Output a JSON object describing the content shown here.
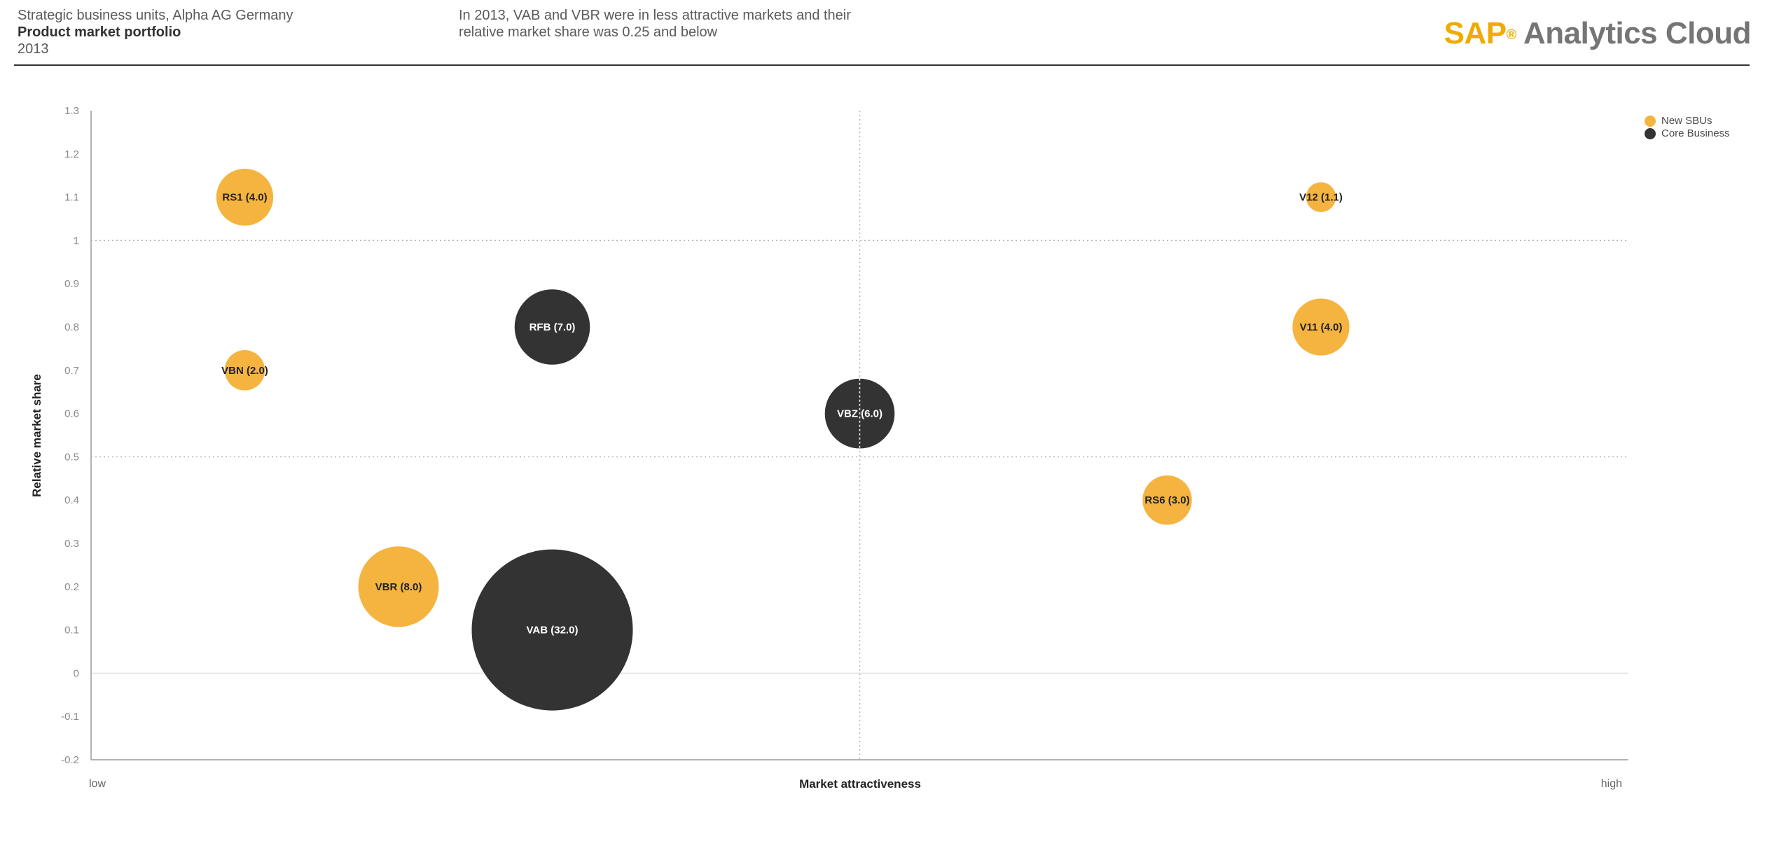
{
  "header": {
    "subtitle": "Strategic business units, Alpha AG Germany",
    "title": "Product market portfolio",
    "year": "2013",
    "comment": "In 2013, VAB and VBR were in less attractive markets and their relative market share was 0.25 and below"
  },
  "logo": {
    "brand": "SAP",
    "registered": "®",
    "product": "Analytics Cloud"
  },
  "colors": {
    "new_sbus": "#F5B440",
    "core_business": "#333333",
    "brand_accent": "#F0AB00"
  },
  "chart_data": {
    "type": "scatter",
    "subtype": "bubble",
    "xlabel": "Market attractiveness",
    "ylabel": "Relative market share",
    "x_tick_labels": {
      "low": "low",
      "high": "high"
    },
    "xlim": [
      0,
      10
    ],
    "ylim": [
      -0.2,
      1.3
    ],
    "y_ticks": [
      "1.3",
      "1.2",
      "1.1",
      "1",
      "0.9",
      "0.8",
      "0.7",
      "0.6",
      "0.5",
      "0.4",
      "0.3",
      "0.2",
      "0.1",
      "0",
      "-0.1",
      "-0.2"
    ],
    "reference_lines": {
      "x": [
        5
      ],
      "y": [
        1,
        0.5
      ]
    },
    "legend": {
      "position": "top-right",
      "entries": [
        "New SBUs",
        "Core Business"
      ]
    },
    "series": [
      {
        "name": "New SBUs",
        "color": "#F5B440",
        "points": [
          {
            "label": "RS1 (4.0)",
            "x": 1.0,
            "y": 1.1,
            "size": 4.0
          },
          {
            "label": "VBN (2.0)",
            "x": 1.0,
            "y": 0.7,
            "size": 2.0
          },
          {
            "label": "VBR (8.0)",
            "x": 2.0,
            "y": 0.2,
            "size": 8.0
          },
          {
            "label": "V12 (1.1)",
            "x": 8.0,
            "y": 1.1,
            "size": 1.1
          },
          {
            "label": "V11 (4.0)",
            "x": 8.0,
            "y": 0.8,
            "size": 4.0
          },
          {
            "label": "RS6 (3.0)",
            "x": 7.0,
            "y": 0.4,
            "size": 3.0
          }
        ]
      },
      {
        "name": "Core Business",
        "color": "#333333",
        "points": [
          {
            "label": "RFB (7.0)",
            "x": 3.0,
            "y": 0.8,
            "size": 7.0
          },
          {
            "label": "VAB (32.0)",
            "x": 3.0,
            "y": 0.1,
            "size": 32.0
          },
          {
            "label": "VBZ (6.0)",
            "x": 5.0,
            "y": 0.6,
            "size": 6.0
          }
        ]
      }
    ]
  }
}
